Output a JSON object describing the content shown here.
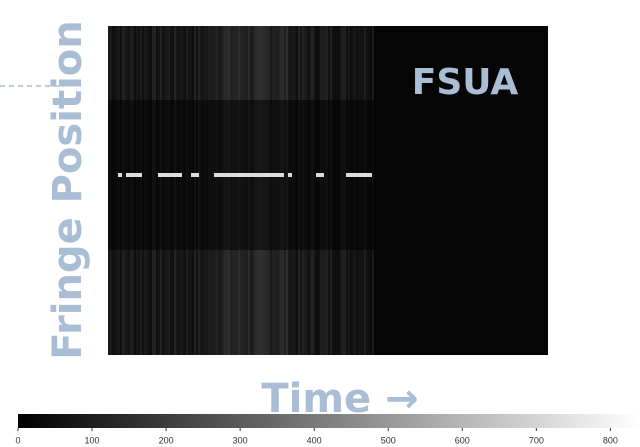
{
  "y_label": "Fringe Position",
  "panel_label": "FSUA",
  "x_label": "Time →",
  "colorbar": {
    "lim": [
      0,
      840
    ],
    "ticks": [
      0,
      100,
      200,
      300,
      400,
      500,
      600,
      700,
      800
    ]
  }
}
